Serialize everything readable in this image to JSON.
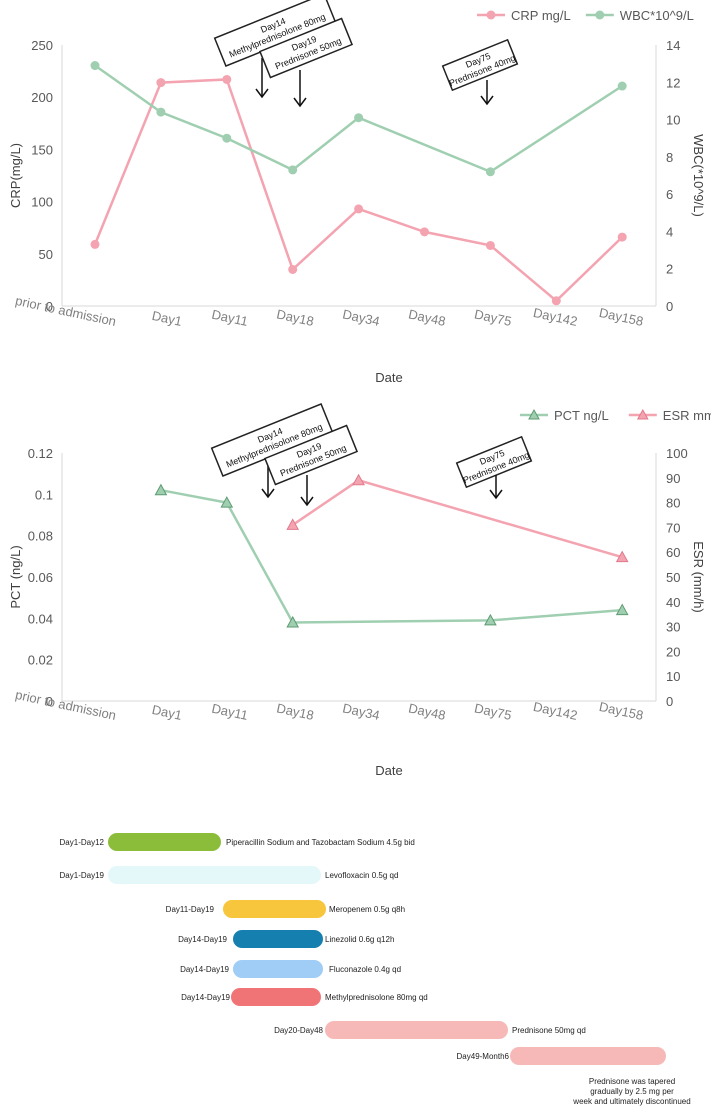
{
  "colors": {
    "crp": "#f4a3b0",
    "wbc": "#9fcfb0",
    "pct": "#9fcfb0",
    "esr": "#f4a3b0"
  },
  "chart_data": [
    {
      "type": "line",
      "categories": [
        "prior to admission",
        "Day1",
        "Day11",
        "Day18",
        "Day34",
        "Day48",
        "Day75",
        "Day142",
        "Day158"
      ],
      "xlabel": "Date",
      "ylabel": "CRP(mg/L)",
      "y2label": "WBC(*10^9/L)",
      "ylim": [
        0,
        250
      ],
      "y2lim": [
        0,
        14
      ],
      "yticks": [
        0,
        50,
        100,
        150,
        200,
        250
      ],
      "y2ticks": [
        0,
        2,
        4,
        6,
        8,
        10,
        12,
        14
      ],
      "legend_position": "top-right",
      "series": [
        {
          "name": "CRP mg/L",
          "axis": "left",
          "values": [
            59,
            214,
            217,
            35,
            93,
            71,
            58,
            5,
            66
          ]
        },
        {
          "name": "WBC*10^9/L",
          "axis": "right",
          "values": [
            12.9,
            10.4,
            9.0,
            7.3,
            10.1,
            null,
            7.2,
            null,
            11.8
          ]
        }
      ],
      "annotations": [
        {
          "line1": "Day14",
          "line2": "Methylprednisolone  80mg"
        },
        {
          "line1": "Day19",
          "line2": "Prednisone  50mg"
        },
        {
          "line1": "Day75",
          "line2": "Prednisone  40mg"
        }
      ]
    },
    {
      "type": "line",
      "categories": [
        "prior to admission",
        "Day1",
        "Day11",
        "Day18",
        "Day34",
        "Day48",
        "Day75",
        "Day142",
        "Day158"
      ],
      "xlabel": "Date",
      "ylabel": "PCT  (ng/L)",
      "y2label": "ESR  (mm/h)",
      "ylim": [
        0,
        0.12
      ],
      "y2lim": [
        0,
        100
      ],
      "yticks": [
        0,
        0.02,
        0.04,
        0.06,
        0.08,
        0.1,
        0.12
      ],
      "y2ticks": [
        0,
        10,
        20,
        30,
        40,
        50,
        60,
        70,
        80,
        90,
        100
      ],
      "legend_position": "top-right",
      "series": [
        {
          "name": "PCT ng/L",
          "axis": "left",
          "values": [
            null,
            0.102,
            0.096,
            0.038,
            null,
            null,
            0.039,
            null,
            0.044
          ]
        },
        {
          "name": "ESR mm/h",
          "axis": "right",
          "values": [
            null,
            null,
            null,
            71,
            89,
            null,
            null,
            null,
            58
          ]
        }
      ],
      "annotations": [
        {
          "line1": "Day14",
          "line2": "Methylprednisolone  80mg"
        },
        {
          "line1": "Day19",
          "line2": "Prednisone  50mg"
        },
        {
          "line1": "Day75",
          "line2": "Prednisone  40mg"
        }
      ]
    }
  ],
  "timeline": [
    {
      "range": "Day1-Day12",
      "drug": "Piperacillin Sodium and Tazobactam Sodium 4.5g bid",
      "color": "#8cbd3a"
    },
    {
      "range": "Day1-Day19",
      "drug": "Levofloxacin 0.5g qd",
      "color": "#e4f7f9"
    },
    {
      "range": "Day11-Day19",
      "drug": "Meropenem  0.5g q8h",
      "color": "#f7c63c"
    },
    {
      "range": "Day14-Day19",
      "drug": "Linezolid  0.6g q12h",
      "color": "#1580b0"
    },
    {
      "range": "Day14-Day19",
      "drug": "Fluconazole  0.4g qd",
      "color": "#9fcdf5"
    },
    {
      "range": "Day14-Day19",
      "drug": "Methylprednisolone 80mg qd",
      "color": "#f07376"
    },
    {
      "range": "Day20-Day48",
      "drug": "Prednisone 50mg qd",
      "color": "#f7b8b8"
    },
    {
      "range": "Day49-Month6",
      "drug": "Prednisone was tapered gradually by 2.5 mg per week and ultimately discontinued",
      "color": "#f7b8b8"
    }
  ]
}
